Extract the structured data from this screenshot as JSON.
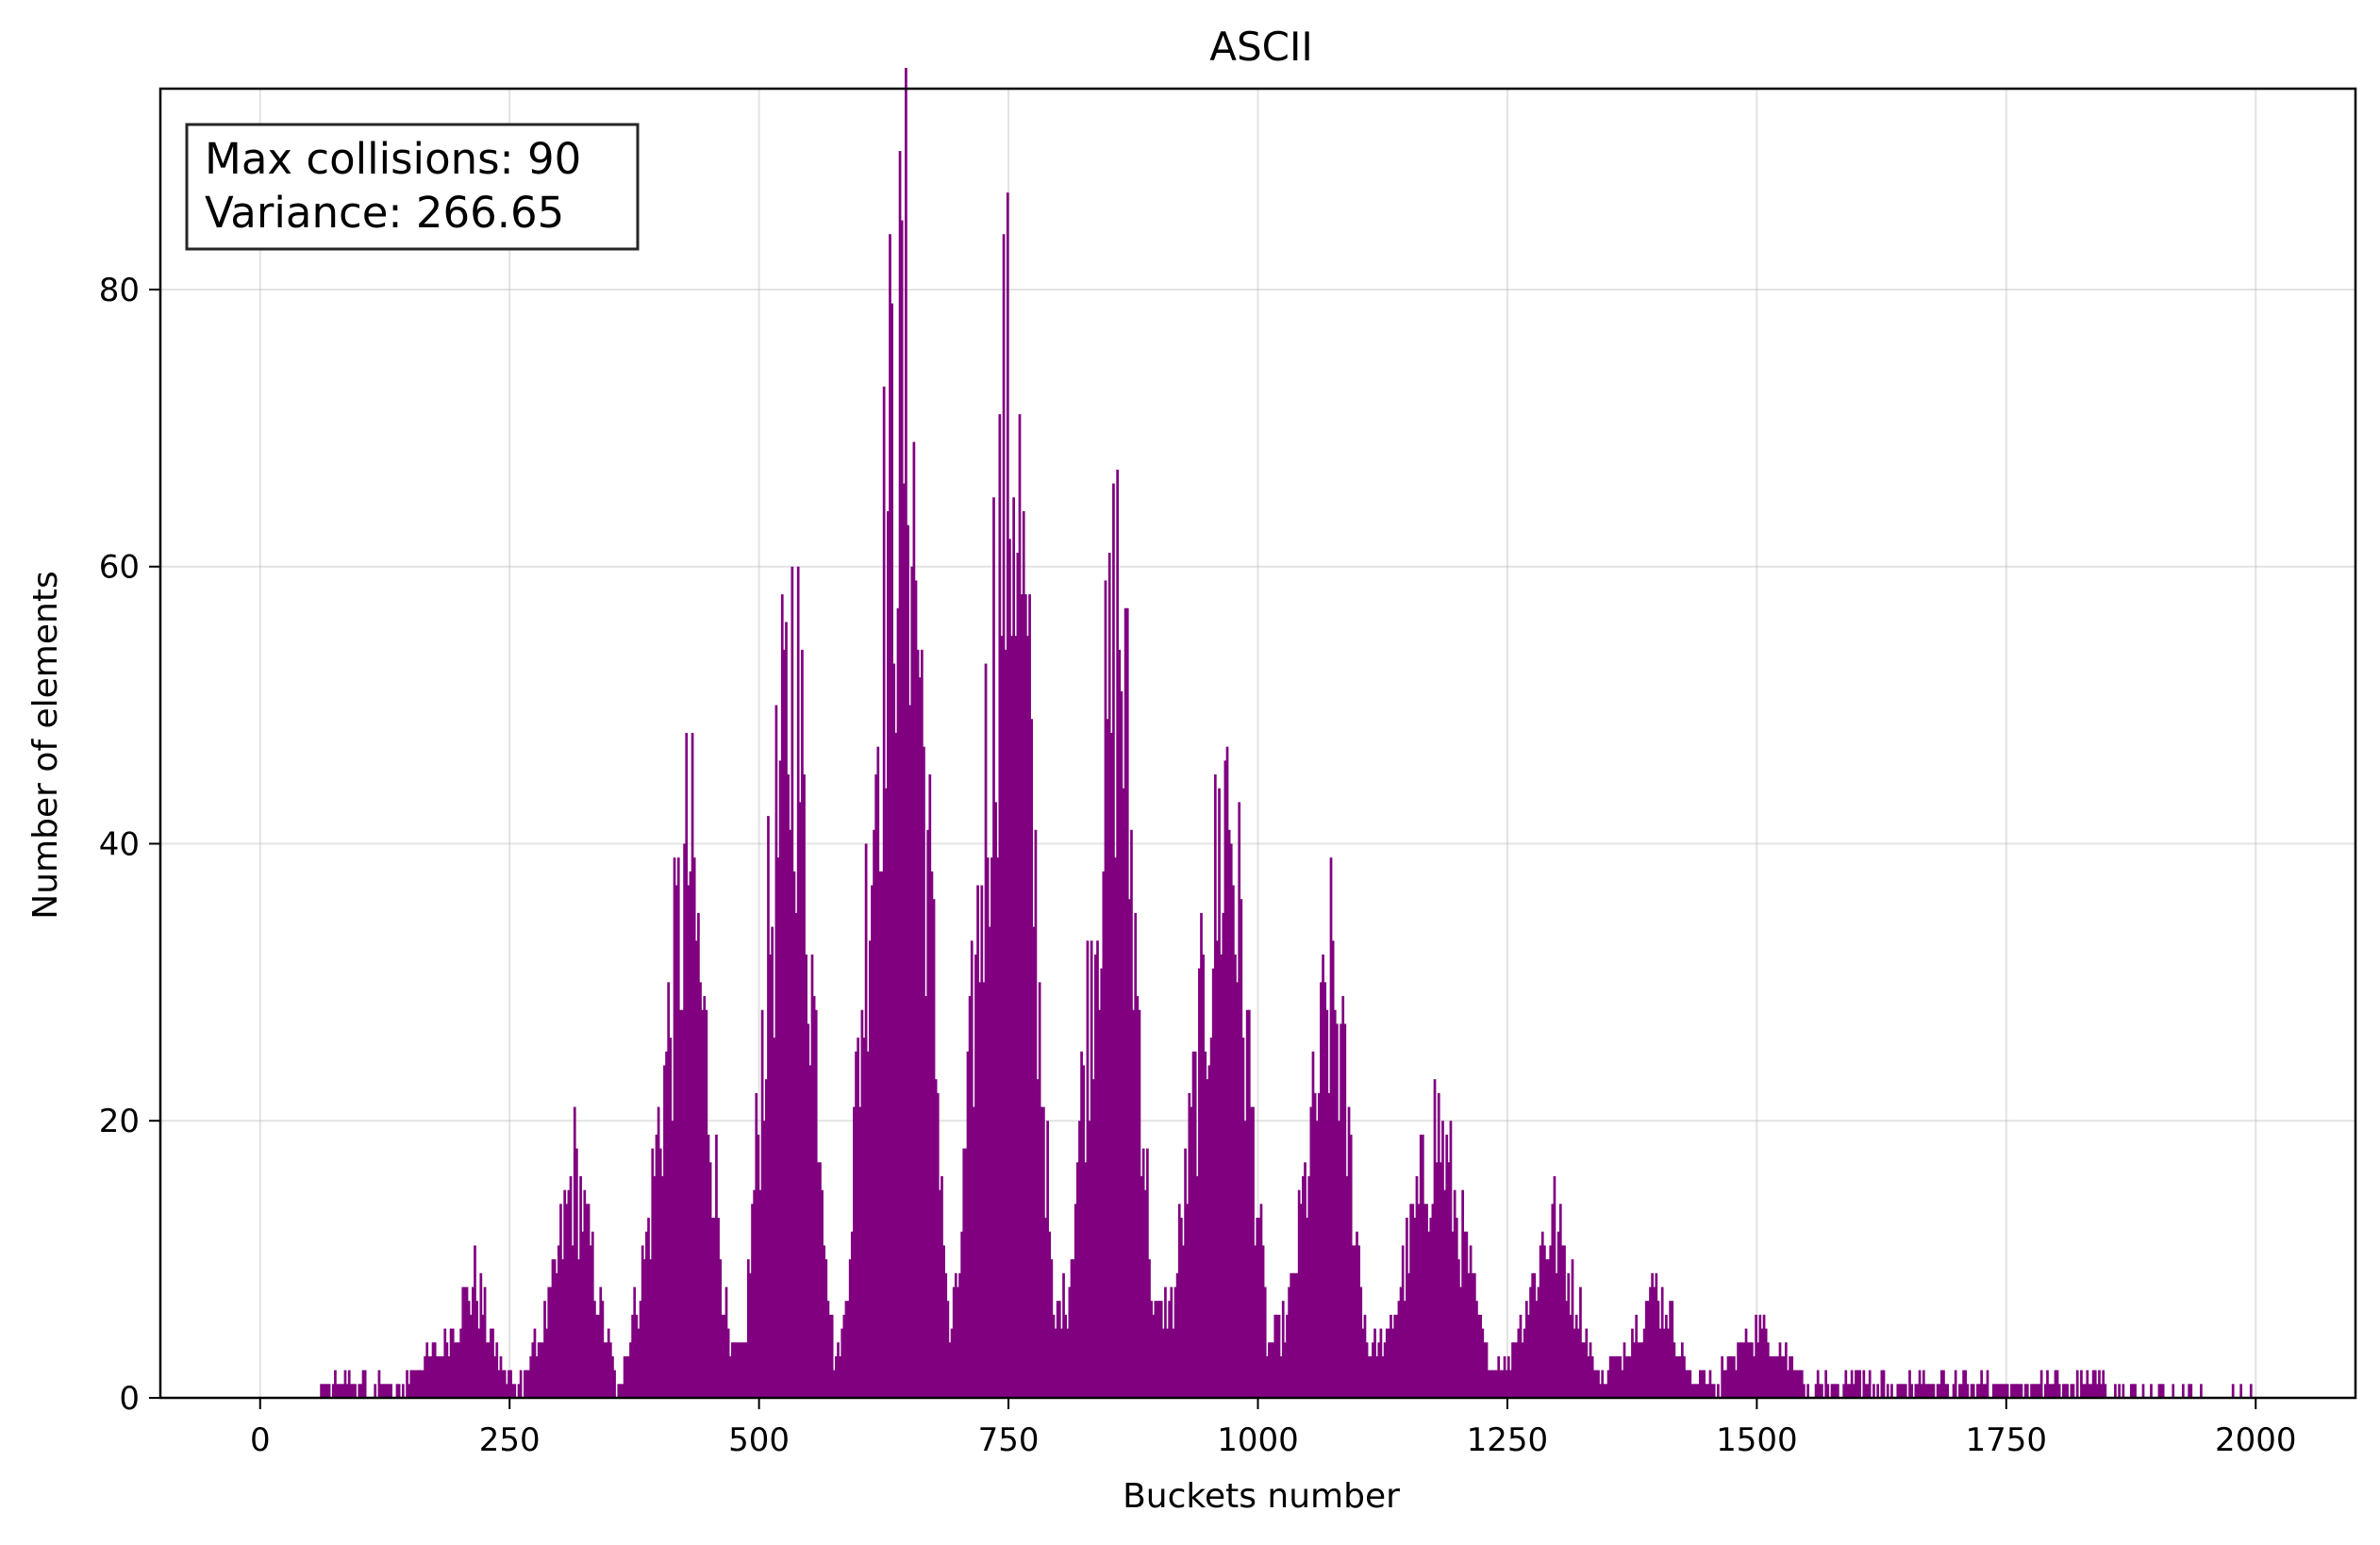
{
  "chart_data": {
    "type": "bar",
    "title": "ASCII",
    "xlabel": "Buckets number",
    "ylabel": "Number of elements",
    "xlim": [
      -100,
      2100
    ],
    "ylim": [
      0,
      94.5
    ],
    "xticks": [
      0,
      250,
      500,
      750,
      1000,
      1250,
      1500,
      1750,
      2000
    ],
    "yticks": [
      0,
      20,
      40,
      60,
      80
    ],
    "grid": true,
    "annotation": [
      "Max collisions: 90",
      "Variance: 266.65"
    ],
    "bar_color": "#800080",
    "bucket_count": 2000,
    "envelope": [
      {
        "x": 0,
        "y": 0
      },
      {
        "x": 60,
        "y": 0
      },
      {
        "x": 65,
        "y": 1
      },
      {
        "x": 130,
        "y": 1
      },
      {
        "x": 140,
        "y": 2
      },
      {
        "x": 180,
        "y": 4
      },
      {
        "x": 215,
        "y": 10
      },
      {
        "x": 240,
        "y": 3
      },
      {
        "x": 260,
        "y": 1
      },
      {
        "x": 290,
        "y": 8
      },
      {
        "x": 315,
        "y": 20
      },
      {
        "x": 345,
        "y": 6
      },
      {
        "x": 360,
        "y": 1
      },
      {
        "x": 385,
        "y": 12
      },
      {
        "x": 430,
        "y": 48
      },
      {
        "x": 470,
        "y": 4
      },
      {
        "x": 485,
        "y": 4
      },
      {
        "x": 510,
        "y": 40
      },
      {
        "x": 535,
        "y": 65
      },
      {
        "x": 575,
        "y": 3
      },
      {
        "x": 585,
        "y": 6
      },
      {
        "x": 630,
        "y": 78
      },
      {
        "x": 648,
        "y": 90
      },
      {
        "x": 690,
        "y": 5
      },
      {
        "x": 700,
        "y": 10
      },
      {
        "x": 745,
        "y": 80
      },
      {
        "x": 757,
        "y": 83
      },
      {
        "x": 795,
        "y": 6
      },
      {
        "x": 810,
        "y": 10
      },
      {
        "x": 860,
        "y": 70
      },
      {
        "x": 895,
        "y": 7
      },
      {
        "x": 915,
        "y": 8
      },
      {
        "x": 970,
        "y": 54
      },
      {
        "x": 1010,
        "y": 4
      },
      {
        "x": 1030,
        "y": 7
      },
      {
        "x": 1075,
        "y": 37
      },
      {
        "x": 1110,
        "y": 4
      },
      {
        "x": 1130,
        "y": 5
      },
      {
        "x": 1180,
        "y": 24
      },
      {
        "x": 1230,
        "y": 3
      },
      {
        "x": 1250,
        "y": 3
      },
      {
        "x": 1295,
        "y": 16
      },
      {
        "x": 1340,
        "y": 2
      },
      {
        "x": 1360,
        "y": 3
      },
      {
        "x": 1400,
        "y": 10
      },
      {
        "x": 1435,
        "y": 2
      },
      {
        "x": 1460,
        "y": 2
      },
      {
        "x": 1500,
        "y": 6
      },
      {
        "x": 1550,
        "y": 2
      },
      {
        "x": 1600,
        "y": 1
      },
      {
        "x": 1680,
        "y": 1
      },
      {
        "x": 1760,
        "y": 1
      },
      {
        "x": 1850,
        "y": 1
      },
      {
        "x": 1900,
        "y": 0.5
      },
      {
        "x": 2000,
        "y": 0
      }
    ]
  }
}
